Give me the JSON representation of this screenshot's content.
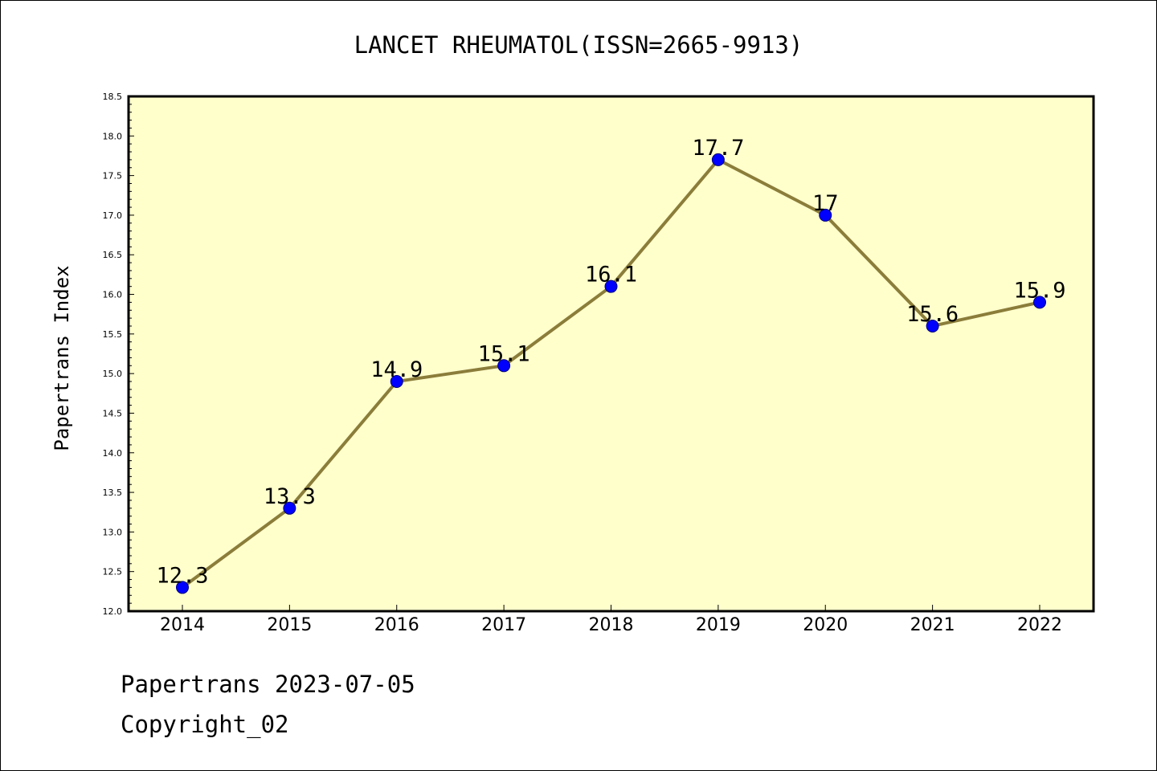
{
  "chart_data": {
    "type": "line",
    "title": "LANCET RHEUMATOL(ISSN=2665-9913)",
    "xlabel": "",
    "ylabel": "Papertrans Index",
    "categories": [
      "2014",
      "2015",
      "2016",
      "2017",
      "2018",
      "2019",
      "2020",
      "2021",
      "2022"
    ],
    "series": [
      {
        "values": [
          12.3,
          13.3,
          14.9,
          15.1,
          16.1,
          17.7,
          17,
          15.6,
          15.9
        ],
        "labels": [
          "12.3",
          "13.3",
          "14.9",
          "15.1",
          "16.1",
          "17.7",
          "17",
          "15.6",
          "15.9"
        ]
      }
    ],
    "ylim": [
      12.0,
      18.5
    ],
    "yticks": [
      "12.0",
      "12.5",
      "13.0",
      "13.5",
      "14.0",
      "14.5",
      "15.0",
      "15.5",
      "16.0",
      "16.5",
      "17.0",
      "17.5",
      "18.0",
      "18.5"
    ],
    "grid": false,
    "legend": "none",
    "colors": {
      "plot_background": "#ffffcc",
      "line": "#8b7d3a",
      "marker": "#0000ff",
      "marker_edge": "#00007f",
      "axis": "#000000"
    }
  },
  "footer": {
    "date_line": "Papertrans 2023-07-05",
    "copyright_line": "Copyright_02"
  }
}
